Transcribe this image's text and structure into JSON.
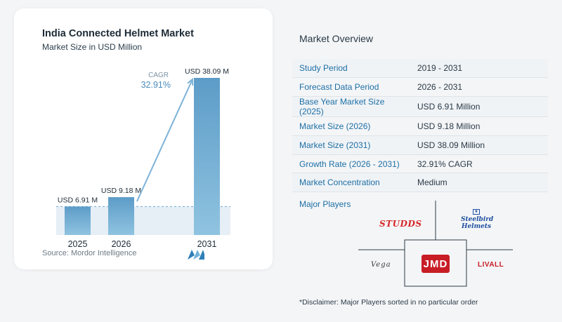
{
  "chart_data": {
    "type": "bar",
    "title": "India Connected Helmet Market",
    "subtitle": "Market Size in USD Million",
    "categories": [
      "2025",
      "2026",
      "2031"
    ],
    "values": [
      6.91,
      9.18,
      38.09
    ],
    "value_labels": [
      "USD 6.91 M",
      "USD 9.18 M",
      "USD 38.09 M"
    ],
    "cagr_label": "CAGR",
    "cagr_value": "32.91%",
    "colors": {
      "bar": "#6fa9cf",
      "bar_light": "#9ecbe4",
      "arrow": "#7eb3d8",
      "band": "#e6eef6"
    }
  },
  "source": "Source:  Mordor Intelligence",
  "overview": {
    "title": "Market Overview",
    "rows": [
      {
        "key": "Study Period",
        "value": "2019 - 2031"
      },
      {
        "key": "Forecast Data Period",
        "value": "2026 - 2031"
      },
      {
        "key": "Base Year Market Size (2025)",
        "value": "USD 6.91 Million"
      },
      {
        "key": "Market Size (2026)",
        "value": "USD 9.18 Million"
      },
      {
        "key": "Market Size (2031)",
        "value": "USD 38.09 Million"
      },
      {
        "key": "Growth Rate (2026 - 2031)",
        "value": "32.91% CAGR"
      },
      {
        "key": "Market Concentration",
        "value": "Medium"
      }
    ]
  },
  "players": {
    "title": "Major Players",
    "logos": [
      "STUDDS",
      "Steelbird Helmets",
      "Vega",
      "JMD",
      "LIVALL"
    ]
  },
  "disclaimer": "*Disclaimer: Major Players sorted in no particular order"
}
